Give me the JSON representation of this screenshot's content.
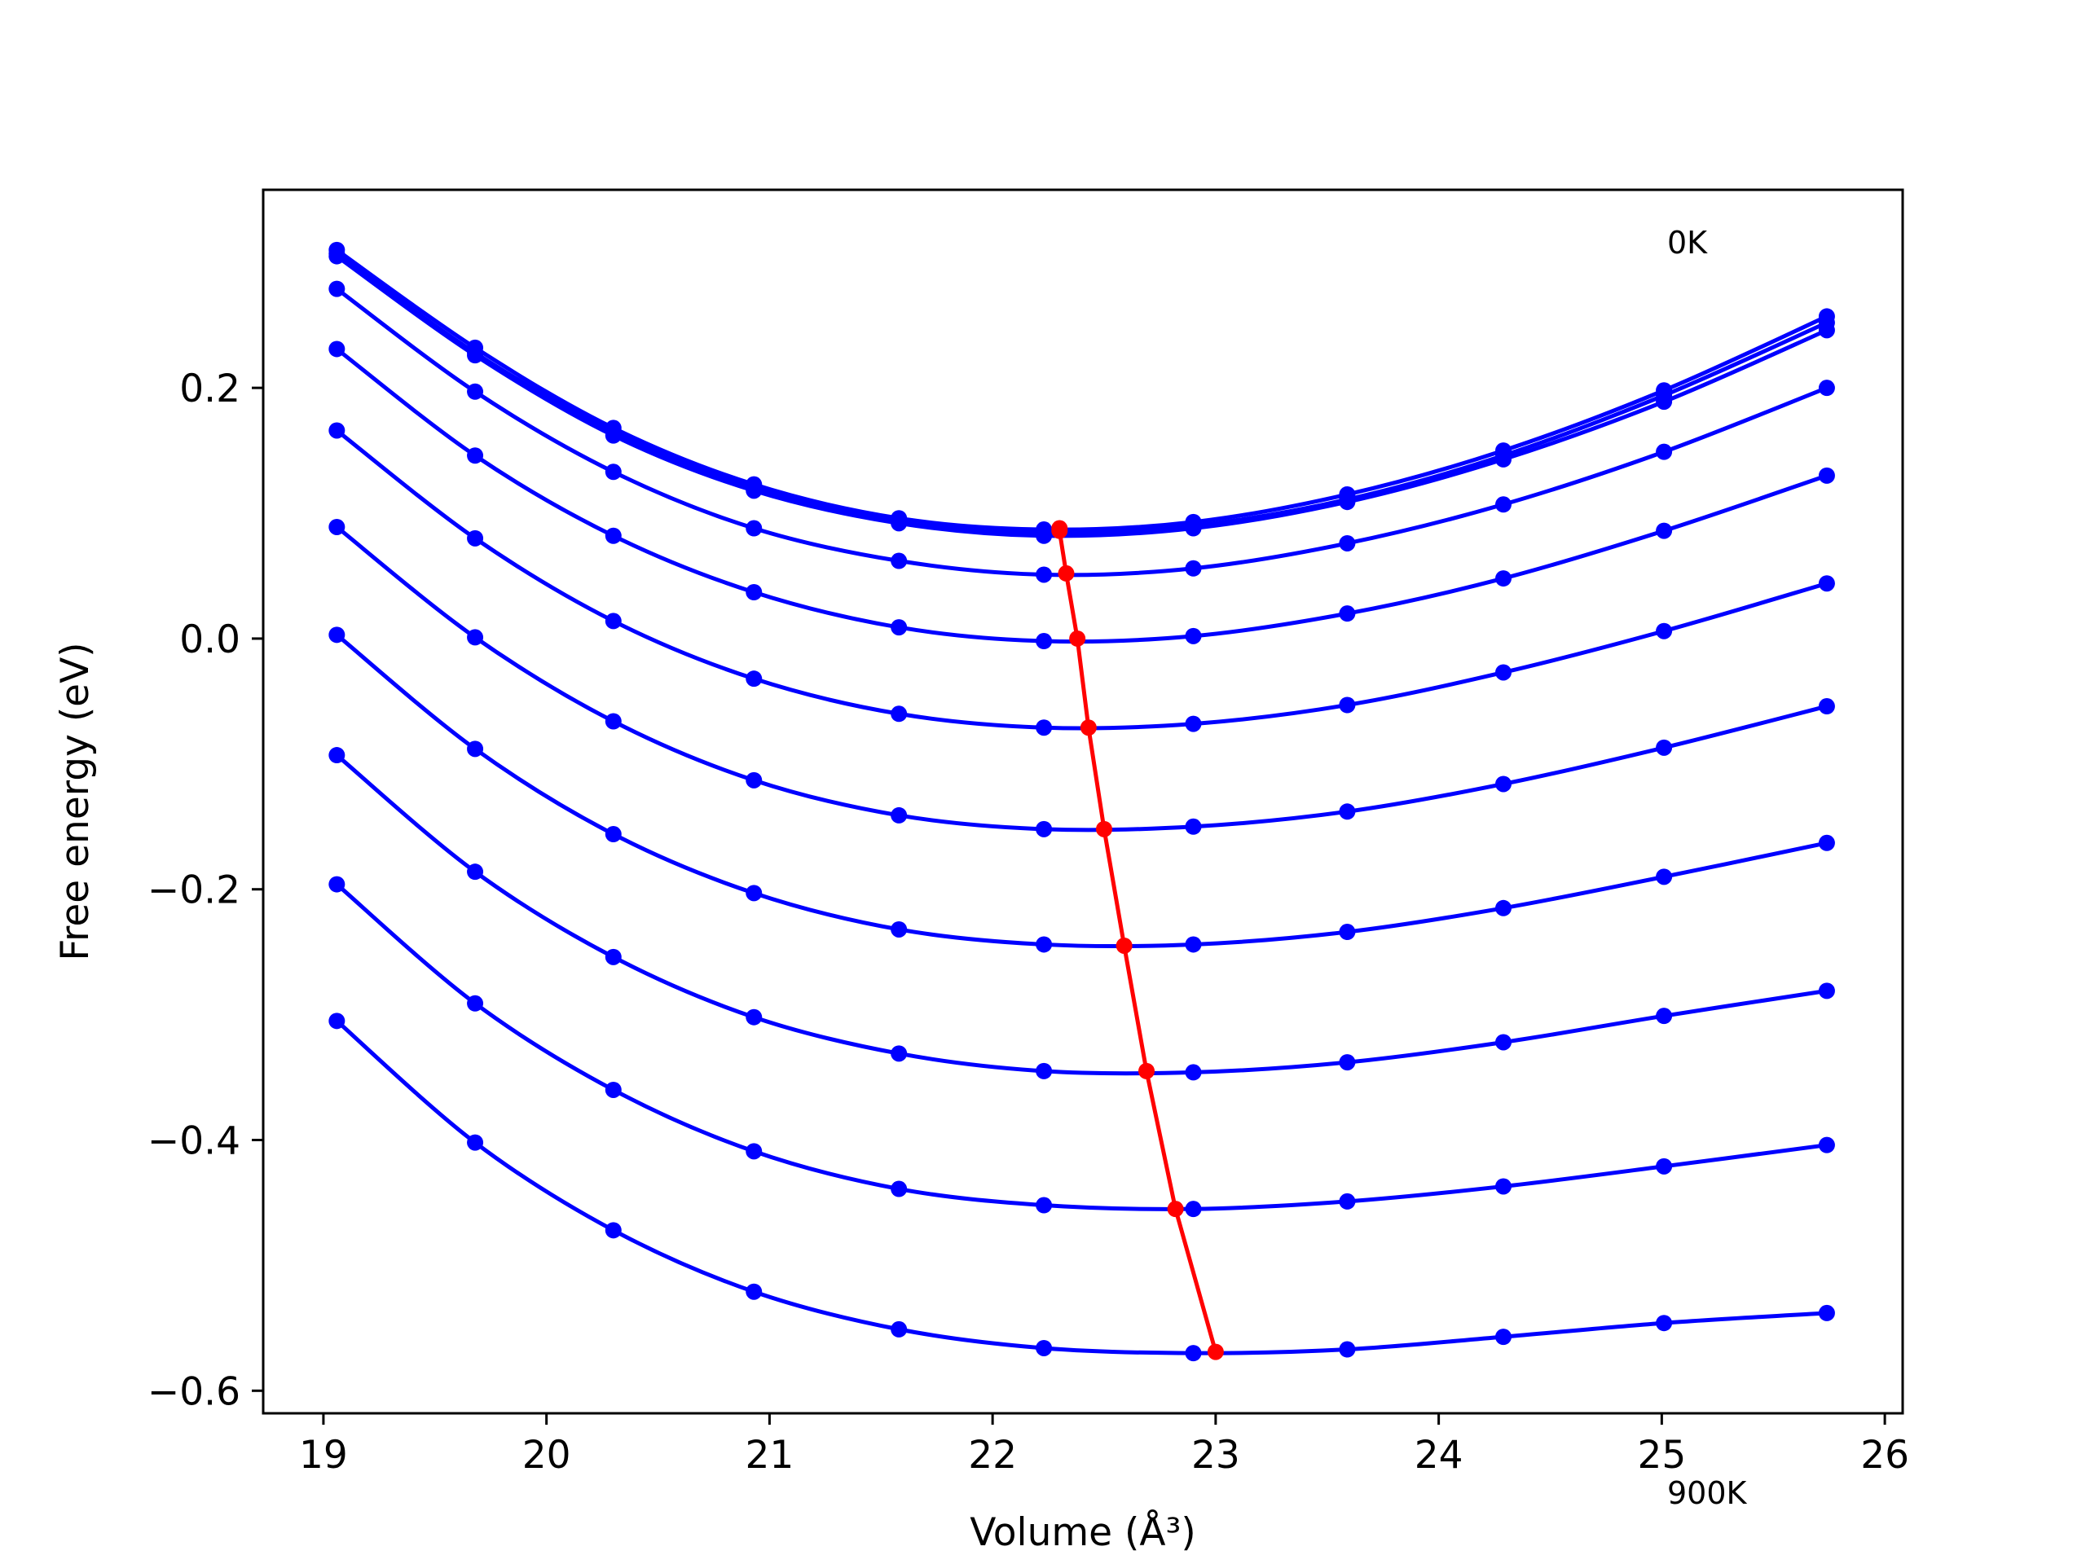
{
  "chart_data": {
    "type": "line",
    "xlabel": "Volume (Å³)",
    "ylabel": "Free energy (eV)",
    "xlim": [
      18.73,
      26.08
    ],
    "ylim": [
      -0.618,
      0.358
    ],
    "x_ticks": [
      19,
      20,
      21,
      22,
      23,
      24,
      25,
      26
    ],
    "y_ticks": [
      -0.6,
      -0.4,
      -0.2,
      0.0,
      0.2
    ],
    "y_tick_labels": [
      "−0.6",
      "−0.4",
      "−0.2",
      "0.0",
      "0.2"
    ],
    "annotations": [
      {
        "text": "0K",
        "x": 25.0,
        "y": 0.31
      },
      {
        "text": "900K",
        "x": 25.0,
        "y": -0.635
      }
    ],
    "grid": false,
    "colors": {
      "isotherms": "#0000ff",
      "minimum_curve": "#ff0000"
    },
    "x": [
      19.06,
      19.68,
      20.3,
      20.93,
      21.58,
      22.23,
      22.9,
      23.59,
      24.29,
      25.01,
      25.74
    ],
    "series": [
      {
        "values": [
          0.31,
          0.232,
          0.168,
          0.123,
          0.096,
          0.087,
          0.093,
          0.115,
          0.15,
          0.198,
          0.257
        ]
      },
      {
        "values": [
          0.307,
          0.228,
          0.165,
          0.12,
          0.093,
          0.084,
          0.09,
          0.111,
          0.146,
          0.194,
          0.252
        ]
      },
      {
        "values": [
          0.305,
          0.226,
          0.162,
          0.118,
          0.092,
          0.082,
          0.088,
          0.109,
          0.143,
          0.189,
          0.246
        ]
      },
      {
        "values": [
          0.279,
          0.197,
          0.133,
          0.088,
          0.062,
          0.051,
          0.056,
          0.076,
          0.107,
          0.149,
          0.2
        ]
      },
      {
        "values": [
          0.231,
          0.146,
          0.082,
          0.037,
          0.009,
          -0.002,
          0.002,
          0.02,
          0.048,
          0.086,
          0.13
        ]
      },
      {
        "values": [
          0.166,
          0.08,
          0.014,
          -0.032,
          -0.06,
          -0.071,
          -0.068,
          -0.053,
          -0.027,
          0.006,
          0.044
        ]
      },
      {
        "values": [
          0.089,
          0.001,
          -0.066,
          -0.113,
          -0.141,
          -0.152,
          -0.15,
          -0.138,
          -0.116,
          -0.087,
          -0.054
        ]
      },
      {
        "values": [
          0.003,
          -0.088,
          -0.156,
          -0.203,
          -0.232,
          -0.244,
          -0.244,
          -0.234,
          -0.215,
          -0.19,
          -0.163
        ]
      },
      {
        "values": [
          -0.093,
          -0.186,
          -0.254,
          -0.302,
          -0.331,
          -0.345,
          -0.346,
          -0.338,
          -0.322,
          -0.301,
          -0.281
        ]
      },
      {
        "values": [
          -0.196,
          -0.291,
          -0.36,
          -0.409,
          -0.439,
          -0.452,
          -0.455,
          -0.449,
          -0.437,
          -0.421,
          -0.404
        ]
      },
      {
        "values": [
          -0.305,
          -0.402,
          -0.472,
          -0.521,
          -0.551,
          -0.566,
          -0.57,
          -0.567,
          -0.557,
          -0.546,
          -0.538
        ]
      }
    ],
    "minimum_curve": {
      "x": [
        22.3,
        22.3,
        22.33,
        22.38,
        22.43,
        22.5,
        22.59,
        22.69,
        22.82,
        23.0
      ],
      "y": [
        0.088,
        0.086,
        0.052,
        0.0,
        -0.071,
        -0.152,
        -0.245,
        -0.345,
        -0.455,
        -0.569
      ]
    }
  }
}
